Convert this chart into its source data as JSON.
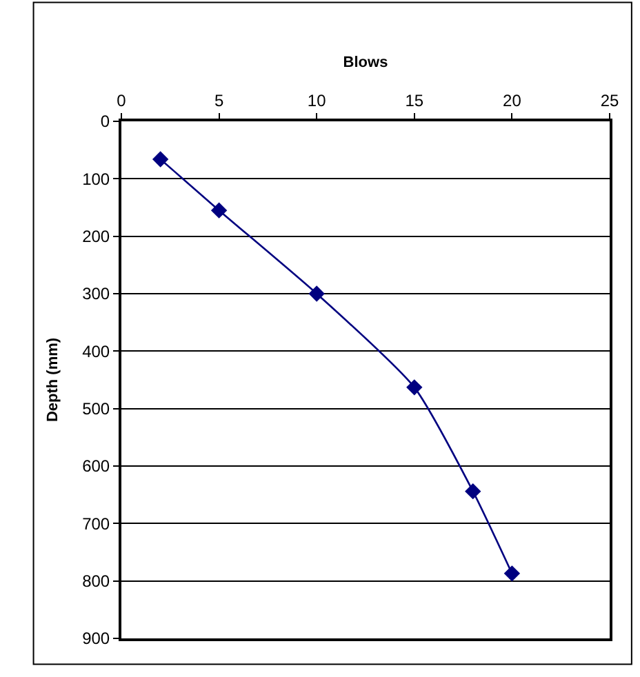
{
  "chart_data": {
    "type": "line",
    "xlabel": "Blows",
    "ylabel": "Depth (mm)",
    "x": [
      2,
      5,
      10,
      15,
      18,
      20
    ],
    "series": [
      {
        "color": "#000080",
        "values": [
          66,
          155,
          300,
          463,
          644,
          787
        ]
      }
    ],
    "xlim": [
      0,
      25
    ],
    "xticks": [
      0,
      5,
      10,
      15,
      20,
      25
    ],
    "ylim": [
      900,
      0
    ],
    "yticks": [
      0,
      100,
      200,
      300,
      400,
      500,
      600,
      700,
      800,
      900
    ],
    "grid": "y",
    "marker": "diamond",
    "line_style": "solid",
    "legend": false
  }
}
